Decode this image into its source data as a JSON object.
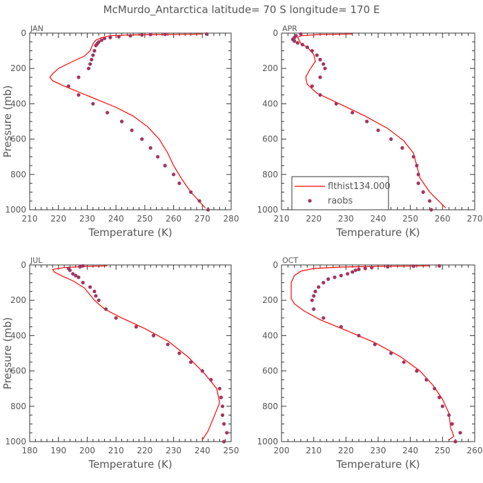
{
  "title": "McMurdo_Antarctica  latitude= 70 S longitude= 170 E",
  "colors": {
    "model": "#ff0000",
    "obs": "#a03560",
    "axis": "#333333",
    "text": "#555555"
  },
  "legend": {
    "model_label": "flthist134.000",
    "obs_label": "raobs"
  },
  "chart_data": [
    {
      "type": "scatter",
      "panel": "JAN",
      "xlabel": "Temperature (K)",
      "ylabel": "Pressure (mb)",
      "xlim": [
        210,
        280
      ],
      "ylim": [
        1000,
        0
      ],
      "xticks": [
        210,
        220,
        230,
        240,
        250,
        260,
        270,
        280
      ],
      "yticks": [
        0,
        200,
        400,
        600,
        800,
        1000
      ],
      "series": [
        {
          "name": "flthist134.000",
          "kind": "line",
          "points": [
            [
              270,
              5
            ],
            [
              260,
              8
            ],
            [
              245,
              10
            ],
            [
              238,
              15
            ],
            [
              235,
              25
            ],
            [
              233,
              40
            ],
            [
              232,
              60
            ],
            [
              231,
              100
            ],
            [
              229,
              130
            ],
            [
              225,
              160
            ],
            [
              220,
              200
            ],
            [
              218,
              230
            ],
            [
              217,
              250
            ],
            [
              218,
              270
            ],
            [
              222,
              300
            ],
            [
              228,
              340
            ],
            [
              234,
              380
            ],
            [
              240,
              420
            ],
            [
              246,
              470
            ],
            [
              251,
              530
            ],
            [
              255,
              600
            ],
            [
              258,
              680
            ],
            [
              260,
              750
            ],
            [
              263,
              830
            ],
            [
              266,
              900
            ],
            [
              271,
              990
            ]
          ]
        },
        {
          "name": "raobs",
          "kind": "scatter",
          "points": [
            [
              271.5,
              5
            ],
            [
              257,
              7
            ],
            [
              252,
              8
            ],
            [
              249,
              10
            ],
            [
              245,
              15
            ],
            [
              241,
              20
            ],
            [
              238,
              25
            ],
            [
              236,
              30
            ],
            [
              235,
              40
            ],
            [
              234,
              50
            ],
            [
              233.5,
              60
            ],
            [
              233,
              70
            ],
            [
              232.5,
              100
            ],
            [
              232,
              125
            ],
            [
              231.5,
              150
            ],
            [
              231,
              175
            ],
            [
              230.5,
              200
            ],
            [
              227,
              250
            ],
            [
              223.5,
              300
            ],
            [
              227,
              350
            ],
            [
              232,
              400
            ],
            [
              237,
              450
            ],
            [
              242,
              500
            ],
            [
              245.5,
              550
            ],
            [
              249,
              600
            ],
            [
              252,
              650
            ],
            [
              254.5,
              700
            ],
            [
              257,
              750
            ],
            [
              260,
              800
            ],
            [
              262,
              850
            ],
            [
              266,
              900
            ],
            [
              269,
              950
            ],
            [
              272,
              1000
            ]
          ]
        }
      ]
    },
    {
      "type": "scatter",
      "panel": "APR",
      "xlabel": "Temperature (K)",
      "ylabel": "",
      "xlim": [
        210,
        270
      ],
      "ylim": [
        1000,
        0
      ],
      "xticks": [
        210,
        220,
        230,
        240,
        250,
        260,
        270
      ],
      "yticks": [
        0,
        200,
        400,
        600,
        800,
        1000
      ],
      "show_legend": true,
      "series": [
        {
          "name": "flthist134.000",
          "kind": "line",
          "points": [
            [
              232,
              5
            ],
            [
              222,
              8
            ],
            [
              216,
              15
            ],
            [
              215,
              25
            ],
            [
              215.5,
              40
            ],
            [
              216,
              60
            ],
            [
              218,
              80
            ],
            [
              220,
              120
            ],
            [
              220.5,
              160
            ],
            [
              219,
              200
            ],
            [
              217.5,
              250
            ],
            [
              218,
              290
            ],
            [
              221,
              340
            ],
            [
              228,
              400
            ],
            [
              236,
              470
            ],
            [
              243,
              540
            ],
            [
              248,
              610
            ],
            [
              251,
              680
            ],
            [
              252,
              750
            ],
            [
              253,
              820
            ],
            [
              256,
              900
            ],
            [
              261,
              990
            ]
          ]
        },
        {
          "name": "raobs",
          "kind": "scatter",
          "points": [
            [
              216,
              5
            ],
            [
              214.5,
              15
            ],
            [
              214,
              25
            ],
            [
              213.5,
              35
            ],
            [
              214,
              45
            ],
            [
              215,
              55
            ],
            [
              216.5,
              65
            ],
            [
              218,
              80
            ],
            [
              219.5,
              100
            ],
            [
              221,
              125
            ],
            [
              222,
              150
            ],
            [
              223,
              175
            ],
            [
              223.5,
              200
            ],
            [
              222,
              250
            ],
            [
              219.5,
              300
            ],
            [
              222,
              350
            ],
            [
              227,
              400
            ],
            [
              232,
              450
            ],
            [
              236.5,
              500
            ],
            [
              240,
              550
            ],
            [
              244,
              600
            ],
            [
              247.5,
              650
            ],
            [
              251,
              700
            ],
            [
              252,
              750
            ],
            [
              252.5,
              800
            ],
            [
              252.5,
              850
            ],
            [
              254,
              900
            ],
            [
              256,
              950
            ],
            [
              256.5,
              1000
            ]
          ]
        }
      ]
    },
    {
      "type": "scatter",
      "panel": "JUL",
      "xlabel": "Temperature (K)",
      "ylabel": "Pressure (mb)",
      "xlim": [
        180,
        250
      ],
      "ylim": [
        1000,
        0
      ],
      "xticks": [
        180,
        190,
        200,
        210,
        220,
        230,
        240,
        250
      ],
      "yticks": [
        0,
        200,
        400,
        600,
        800,
        1000
      ],
      "series": [
        {
          "name": "flthist134.000",
          "kind": "line",
          "points": [
            [
              207,
              5
            ],
            [
              200,
              8
            ],
            [
              192,
              15
            ],
            [
              188,
              25
            ],
            [
              188.5,
              40
            ],
            [
              191,
              60
            ],
            [
              195,
              90
            ],
            [
              199,
              130
            ],
            [
              201,
              170
            ],
            [
              202.5,
              200
            ],
            [
              206,
              250
            ],
            [
              212,
              300
            ],
            [
              220,
              360
            ],
            [
              228,
              430
            ],
            [
              235,
              520
            ],
            [
              241,
              620
            ],
            [
              245,
              700
            ],
            [
              246,
              780
            ],
            [
              244,
              860
            ],
            [
              242,
              940
            ],
            [
              240,
              990
            ]
          ]
        },
        {
          "name": "raobs",
          "kind": "scatter",
          "points": [
            [
              198.5,
              5
            ],
            [
              197.5,
              10
            ],
            [
              193.5,
              20
            ],
            [
              194,
              30
            ],
            [
              195,
              50
            ],
            [
              196,
              60
            ],
            [
              197,
              70
            ],
            [
              198.5,
              100
            ],
            [
              201,
              125
            ],
            [
              202.5,
              150
            ],
            [
              203,
              175
            ],
            [
              204,
              200
            ],
            [
              206.5,
              250
            ],
            [
              210,
              300
            ],
            [
              217,
              350
            ],
            [
              223,
              400
            ],
            [
              228,
              450
            ],
            [
              232,
              500
            ],
            [
              236,
              550
            ],
            [
              240,
              600
            ],
            [
              243,
              650
            ],
            [
              246,
              700
            ],
            [
              246.5,
              750
            ],
            [
              247,
              800
            ],
            [
              247,
              850
            ],
            [
              247.5,
              900
            ],
            [
              248.5,
              950
            ],
            [
              247.5,
              1000
            ]
          ]
        }
      ]
    },
    {
      "type": "scatter",
      "panel": "OCT",
      "xlabel": "Temperature (K)",
      "ylabel": "",
      "xlim": [
        200,
        260
      ],
      "ylim": [
        1000,
        0
      ],
      "xticks": [
        200,
        210,
        220,
        230,
        240,
        250,
        260
      ],
      "yticks": [
        0,
        200,
        400,
        600,
        800,
        1000
      ],
      "series": [
        {
          "name": "flthist134.000",
          "kind": "line",
          "points": [
            [
              246,
              5
            ],
            [
              230,
              8
            ],
            [
              218,
              12
            ],
            [
              210,
              20
            ],
            [
              206,
              35
            ],
            [
              204,
              60
            ],
            [
              203,
              100
            ],
            [
              203,
              150
            ],
            [
              203,
              190
            ],
            [
              204,
              220
            ],
            [
              207,
              260
            ],
            [
              212,
              310
            ],
            [
              220,
              370
            ],
            [
              229,
              440
            ],
            [
              237,
              520
            ],
            [
              243,
              600
            ],
            [
              247,
              680
            ],
            [
              250,
              760
            ],
            [
              252,
              840
            ],
            [
              252.5,
              920
            ],
            [
              253.5,
              970
            ],
            [
              252,
              990
            ]
          ]
        },
        {
          "name": "raobs",
          "kind": "scatter",
          "points": [
            [
              249,
              5
            ],
            [
              241,
              7
            ],
            [
              233,
              10
            ],
            [
              228,
              15
            ],
            [
              226,
              20
            ],
            [
              224,
              25
            ],
            [
              223,
              30
            ],
            [
              222,
              40
            ],
            [
              220.5,
              50
            ],
            [
              218.5,
              60
            ],
            [
              216.5,
              70
            ],
            [
              214.5,
              80
            ],
            [
              213,
              100
            ],
            [
              211.5,
              125
            ],
            [
              210.5,
              150
            ],
            [
              210,
              175
            ],
            [
              209.5,
              200
            ],
            [
              210,
              250
            ],
            [
              213,
              300
            ],
            [
              218.5,
              350
            ],
            [
              224,
              400
            ],
            [
              229,
              450
            ],
            [
              234,
              500
            ],
            [
              238,
              550
            ],
            [
              242,
              600
            ],
            [
              245,
              650
            ],
            [
              247.5,
              700
            ],
            [
              249,
              750
            ],
            [
              250,
              800
            ],
            [
              252,
              850
            ],
            [
              253,
              900
            ],
            [
              255.5,
              950
            ],
            [
              254,
              1000
            ]
          ]
        }
      ]
    }
  ]
}
